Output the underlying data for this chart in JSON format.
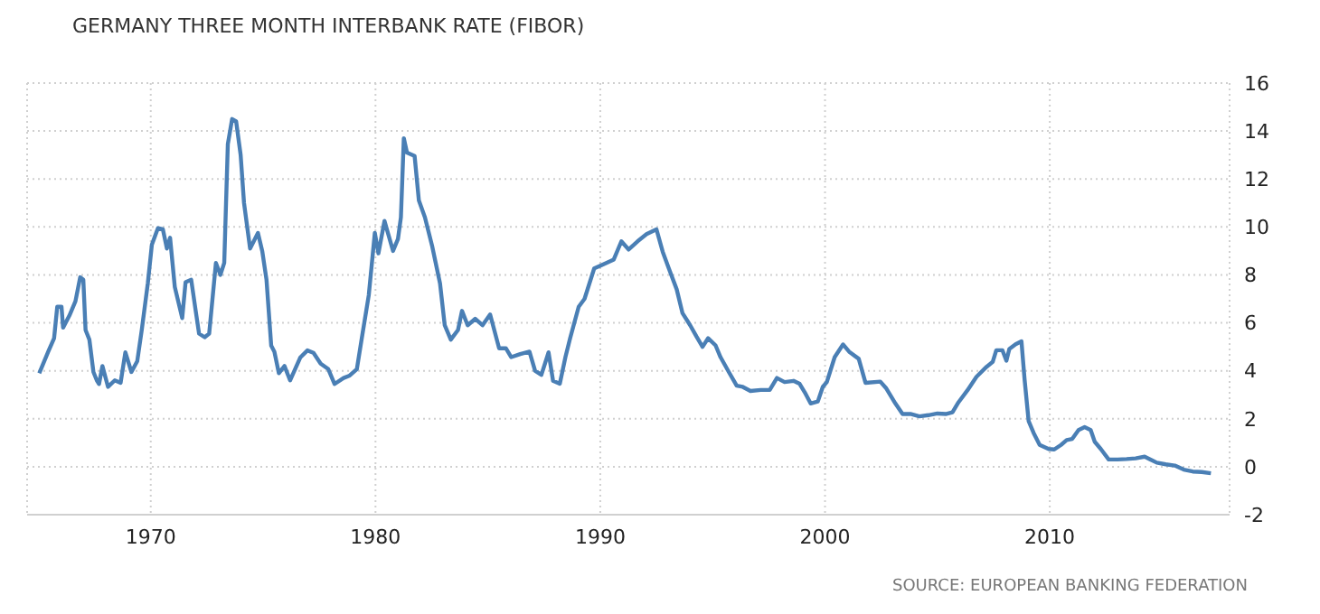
{
  "chart_data": {
    "type": "line",
    "title": "GERMANY THREE MONTH INTERBANK RATE (FIBOR)",
    "annotations": [
      "SOURCE: EUROPEAN BANKING FEDERATION"
    ],
    "x": [
      1965.04,
      1965.44,
      1965.7,
      1965.84,
      1966.03,
      1966.1,
      1966.38,
      1966.65,
      1966.86,
      1967.0,
      1967.1,
      1967.27,
      1967.45,
      1967.6,
      1967.7,
      1967.85,
      1968.1,
      1968.4,
      1968.66,
      1968.87,
      1969.14,
      1969.4,
      1969.6,
      1969.87,
      1970.05,
      1970.32,
      1970.54,
      1970.72,
      1970.86,
      1971.07,
      1971.4,
      1971.55,
      1971.8,
      1972.0,
      1972.15,
      1972.4,
      1972.6,
      1972.9,
      1973.1,
      1973.27,
      1973.43,
      1973.62,
      1973.8,
      1974.0,
      1974.15,
      1974.42,
      1974.77,
      1974.96,
      1975.15,
      1975.36,
      1975.5,
      1975.7,
      1975.95,
      1976.2,
      1976.65,
      1976.97,
      1977.24,
      1977.56,
      1977.9,
      1978.18,
      1978.58,
      1978.85,
      1979.17,
      1979.38,
      1979.7,
      1979.97,
      1980.13,
      1980.4,
      1980.78,
      1981.0,
      1981.13,
      1981.26,
      1981.4,
      1981.74,
      1981.93,
      1982.2,
      1982.52,
      1982.87,
      1983.08,
      1983.35,
      1983.67,
      1983.85,
      1984.1,
      1984.44,
      1984.76,
      1985.1,
      1985.5,
      1985.8,
      1986.04,
      1986.44,
      1986.85,
      1987.1,
      1987.38,
      1987.7,
      1987.9,
      1988.2,
      1988.45,
      1988.66,
      1989.04,
      1989.3,
      1989.73,
      1990.05,
      1990.6,
      1990.94,
      1991.26,
      1991.66,
      1992.06,
      1992.5,
      1992.78,
      1993.05,
      1993.4,
      1993.66,
      1994.0,
      1994.28,
      1994.55,
      1994.8,
      1995.13,
      1995.35,
      1995.72,
      1996.07,
      1996.34,
      1996.68,
      1997.14,
      1997.54,
      1997.86,
      1998.2,
      1998.6,
      1998.87,
      1999.1,
      1999.36,
      1999.68,
      1999.9,
      2000.08,
      2000.43,
      2000.8,
      2001.07,
      2001.5,
      2001.8,
      2002.46,
      2002.73,
      2003.13,
      2003.45,
      2003.8,
      2004.2,
      2004.6,
      2005.0,
      2005.4,
      2005.67,
      2005.94,
      2006.34,
      2006.74,
      2007.19,
      2007.46,
      2007.62,
      2007.89,
      2008.07,
      2008.2,
      2008.48,
      2008.74,
      2008.88,
      2009.06,
      2009.28,
      2009.55,
      2009.95,
      2010.2,
      2010.5,
      2010.75,
      2011.0,
      2011.28,
      2011.55,
      2011.82,
      2012.0,
      2012.27,
      2012.62,
      2013.02,
      2013.42,
      2013.82,
      2014.22,
      2014.76,
      2015.16,
      2015.56,
      2015.96,
      2016.36,
      2016.76,
      2017.17
    ],
    "series": [
      {
        "color": "#4a7fb5",
        "values": [
          3.9,
          4.8,
          5.36,
          6.67,
          6.67,
          5.8,
          6.3,
          6.9,
          7.9,
          7.8,
          5.7,
          5.3,
          3.95,
          3.6,
          3.45,
          4.2,
          3.33,
          3.6,
          3.5,
          4.77,
          3.95,
          4.4,
          5.7,
          7.65,
          9.26,
          9.95,
          9.9,
          9.1,
          9.55,
          7.5,
          6.2,
          7.7,
          7.8,
          6.5,
          5.55,
          5.4,
          5.55,
          8.5,
          8.0,
          8.5,
          13.45,
          14.5,
          14.4,
          13.0,
          11.0,
          9.1,
          9.75,
          9.0,
          7.8,
          5.05,
          4.8,
          3.9,
          4.2,
          3.6,
          4.55,
          4.85,
          4.75,
          4.3,
          4.07,
          3.45,
          3.7,
          3.8,
          4.07,
          5.3,
          7.15,
          9.75,
          8.9,
          10.25,
          9.0,
          9.5,
          10.4,
          13.7,
          13.1,
          12.96,
          11.1,
          10.4,
          9.2,
          7.65,
          5.9,
          5.3,
          5.7,
          6.5,
          5.9,
          6.17,
          5.9,
          6.35,
          4.94,
          4.94,
          4.57,
          4.7,
          4.8,
          4.0,
          3.83,
          4.77,
          3.58,
          3.46,
          4.57,
          5.36,
          6.67,
          7.0,
          8.27,
          8.4,
          8.64,
          9.4,
          9.06,
          9.4,
          9.7,
          9.9,
          8.96,
          8.27,
          7.4,
          6.4,
          5.9,
          5.43,
          5.0,
          5.36,
          5.06,
          4.57,
          3.95,
          3.38,
          3.33,
          3.16,
          3.2,
          3.2,
          3.7,
          3.53,
          3.58,
          3.46,
          3.1,
          2.64,
          2.72,
          3.33,
          3.53,
          4.57,
          5.1,
          4.8,
          4.5,
          3.5,
          3.55,
          3.26,
          2.64,
          2.2,
          2.2,
          2.1,
          2.15,
          2.22,
          2.2,
          2.27,
          2.69,
          3.19,
          3.75,
          4.17,
          4.37,
          4.86,
          4.86,
          4.42,
          4.91,
          5.11,
          5.23,
          3.63,
          1.9,
          1.41,
          0.91,
          0.74,
          0.72,
          0.91,
          1.11,
          1.16,
          1.53,
          1.65,
          1.53,
          1.04,
          0.74,
          0.3,
          0.3,
          0.32,
          0.35,
          0.42,
          0.17,
          0.1,
          0.05,
          -0.12,
          -0.2,
          -0.22,
          -0.27
        ]
      }
    ],
    "xlim": [
      1964.5,
      2018
    ],
    "xticks": [
      1970,
      1980,
      1990,
      2000,
      2010
    ],
    "ylim": [
      -2,
      16
    ],
    "yticks": [
      -2,
      0,
      2,
      4,
      6,
      8,
      10,
      12,
      14,
      16
    ],
    "grid": true
  }
}
